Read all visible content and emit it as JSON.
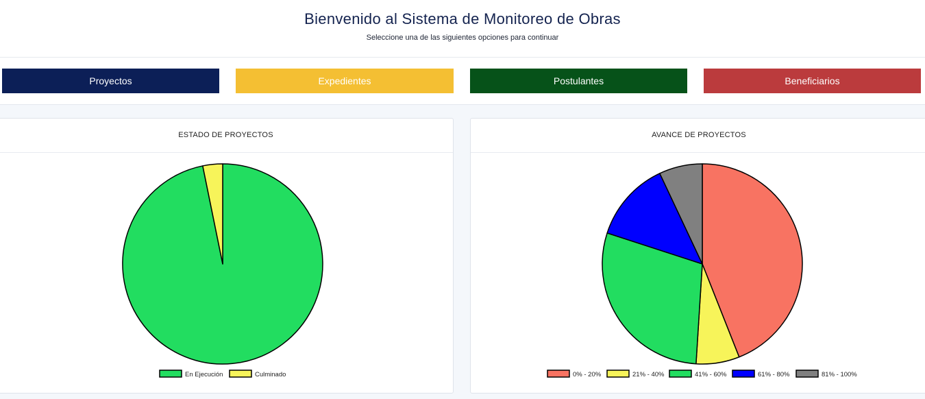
{
  "header": {
    "title": "Bienvenido al Sistema de Monitoreo de Obras",
    "subtitle": "Seleccione una de las siguientes opciones para continuar"
  },
  "nav_buttons": [
    {
      "label": "Proyectos",
      "color": "#0c1f57"
    },
    {
      "label": "Expedientes",
      "color": "#f4bf33"
    },
    {
      "label": "Postulantes",
      "color": "#065219"
    },
    {
      "label": "Beneficiarios",
      "color": "#bb3b3d"
    }
  ],
  "chart_data": [
    {
      "type": "pie",
      "title": "ESTADO DE PROYECTOS",
      "categories": [
        "En Ejecución",
        "Culminado"
      ],
      "values": [
        96.8,
        3.2
      ],
      "colors": [
        "#22dd60",
        "#f7f45a"
      ],
      "legend": "bottom"
    },
    {
      "type": "pie",
      "title": "AVANCE DE PROYECTOS",
      "categories": [
        "0% - 20%",
        "21% - 40%",
        "41% - 60%",
        "61% - 80%",
        "81% - 100%"
      ],
      "values": [
        44,
        7,
        29,
        13,
        7
      ],
      "colors": [
        "#f87362",
        "#f7f45a",
        "#22dd60",
        "#0000ff",
        "#808080"
      ],
      "legend": "bottom"
    }
  ]
}
